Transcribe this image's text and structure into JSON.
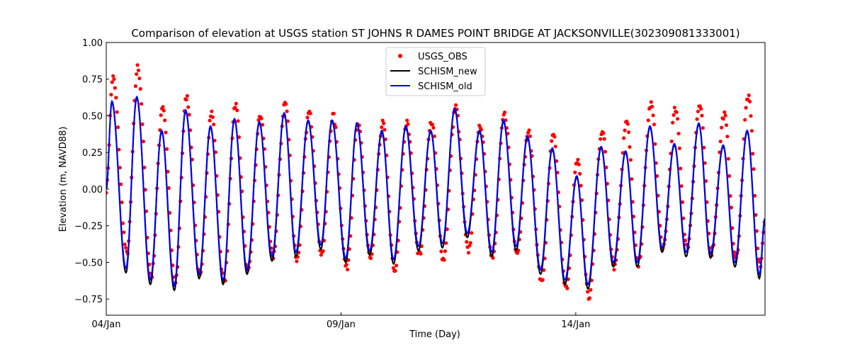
{
  "chart_data": {
    "type": "line",
    "title": "Comparison of elevation at USGS station ST JOHNS R DAMES POINT BRIDGE AT JACKSONVILLE(302309081333001)",
    "xlabel": "Time (Day)",
    "ylabel": "Elevation (m, NAVD88)",
    "xlim_days_from_start": [
      0,
      14.03
    ],
    "ylim": [
      -0.86,
      1.0
    ],
    "x_ticks": [
      {
        "day": 0,
        "label": "04/Jan"
      },
      {
        "day": 5,
        "label": "09/Jan"
      },
      {
        "day": 10,
        "label": "14/Jan"
      }
    ],
    "y_ticks": [
      {
        "value": 1.0,
        "label": "1.00"
      },
      {
        "value": 0.75,
        "label": "0.75"
      },
      {
        "value": 0.5,
        "label": "0.50"
      },
      {
        "value": 0.25,
        "label": "0.25"
      },
      {
        "value": 0.0,
        "label": "0.00"
      },
      {
        "value": -0.25,
        "label": "−0.25"
      },
      {
        "value": -0.5,
        "label": "−0.50"
      },
      {
        "value": -0.75,
        "label": "−0.75"
      }
    ],
    "legend": {
      "placement": "top-center",
      "entries": [
        "USGS_OBS",
        "SCHISM_new",
        "SCHISM_old"
      ]
    },
    "colors": {
      "obs": "#ff0000",
      "new": "#000000",
      "old": "#0000ff"
    },
    "model_start": [
      0,
      0.0
    ],
    "model_end": [
      14.03,
      -0.2
    ],
    "model_highs": [
      [
        0.12,
        0.6
      ],
      [
        0.65,
        0.63
      ],
      [
        1.18,
        0.4
      ],
      [
        1.69,
        0.54
      ],
      [
        2.22,
        0.43
      ],
      [
        2.73,
        0.48
      ],
      [
        3.26,
        0.46
      ],
      [
        3.79,
        0.52
      ],
      [
        4.3,
        0.47
      ],
      [
        4.81,
        0.47
      ],
      [
        5.34,
        0.45
      ],
      [
        5.87,
        0.4
      ],
      [
        6.38,
        0.43
      ],
      [
        6.91,
        0.4
      ],
      [
        7.42,
        0.55
      ],
      [
        7.95,
        0.4
      ],
      [
        8.46,
        0.47
      ],
      [
        8.97,
        0.36
      ],
      [
        9.5,
        0.28
      ],
      [
        10.02,
        0.09
      ],
      [
        10.54,
        0.29
      ],
      [
        11.06,
        0.26
      ],
      [
        11.58,
        0.43
      ],
      [
        12.1,
        0.31
      ],
      [
        12.62,
        0.45
      ],
      [
        13.14,
        0.3
      ],
      [
        13.65,
        0.4
      ]
    ],
    "model_lows": [
      [
        0.42,
        -0.54
      ],
      [
        0.94,
        -0.62
      ],
      [
        1.45,
        -0.66
      ],
      [
        1.98,
        -0.58
      ],
      [
        2.49,
        -0.62
      ],
      [
        3.0,
        -0.55
      ],
      [
        3.53,
        -0.46
      ],
      [
        4.04,
        -0.43
      ],
      [
        4.57,
        -0.38
      ],
      [
        5.1,
        -0.47
      ],
      [
        5.61,
        -0.42
      ],
      [
        6.12,
        -0.48
      ],
      [
        6.65,
        -0.39
      ],
      [
        7.16,
        -0.37
      ],
      [
        7.69,
        -0.3
      ],
      [
        8.21,
        -0.43
      ],
      [
        8.73,
        -0.39
      ],
      [
        9.25,
        -0.55
      ],
      [
        9.77,
        -0.62
      ],
      [
        10.26,
        -0.65
      ],
      [
        10.8,
        -0.5
      ],
      [
        11.31,
        -0.5
      ],
      [
        11.84,
        -0.4
      ],
      [
        12.35,
        -0.43
      ],
      [
        12.87,
        -0.44
      ],
      [
        13.39,
        -0.5
      ],
      [
        13.91,
        -0.58
      ]
    ],
    "obs_highs": [
      0.8,
      0.87,
      0.61,
      0.67,
      0.56,
      0.62,
      0.54,
      0.63,
      0.56,
      0.54,
      0.48,
      0.49,
      0.49,
      0.5,
      0.6,
      0.47,
      0.55,
      0.43,
      0.4,
      0.24,
      0.44,
      0.5,
      0.62,
      0.58,
      0.61,
      0.55,
      0.67
    ],
    "obs_lows": [
      -0.46,
      -0.62,
      -0.67,
      -0.62,
      -0.66,
      -0.59,
      -0.48,
      -0.5,
      -0.46,
      -0.56,
      -0.5,
      -0.59,
      -0.47,
      -0.5,
      -0.44,
      -0.49,
      -0.45,
      -0.66,
      -0.7,
      -0.76,
      -0.55,
      -0.54,
      -0.43,
      -0.42,
      -0.45,
      -0.5,
      -0.55
    ],
    "obs_interval_days": 0.0208
  }
}
